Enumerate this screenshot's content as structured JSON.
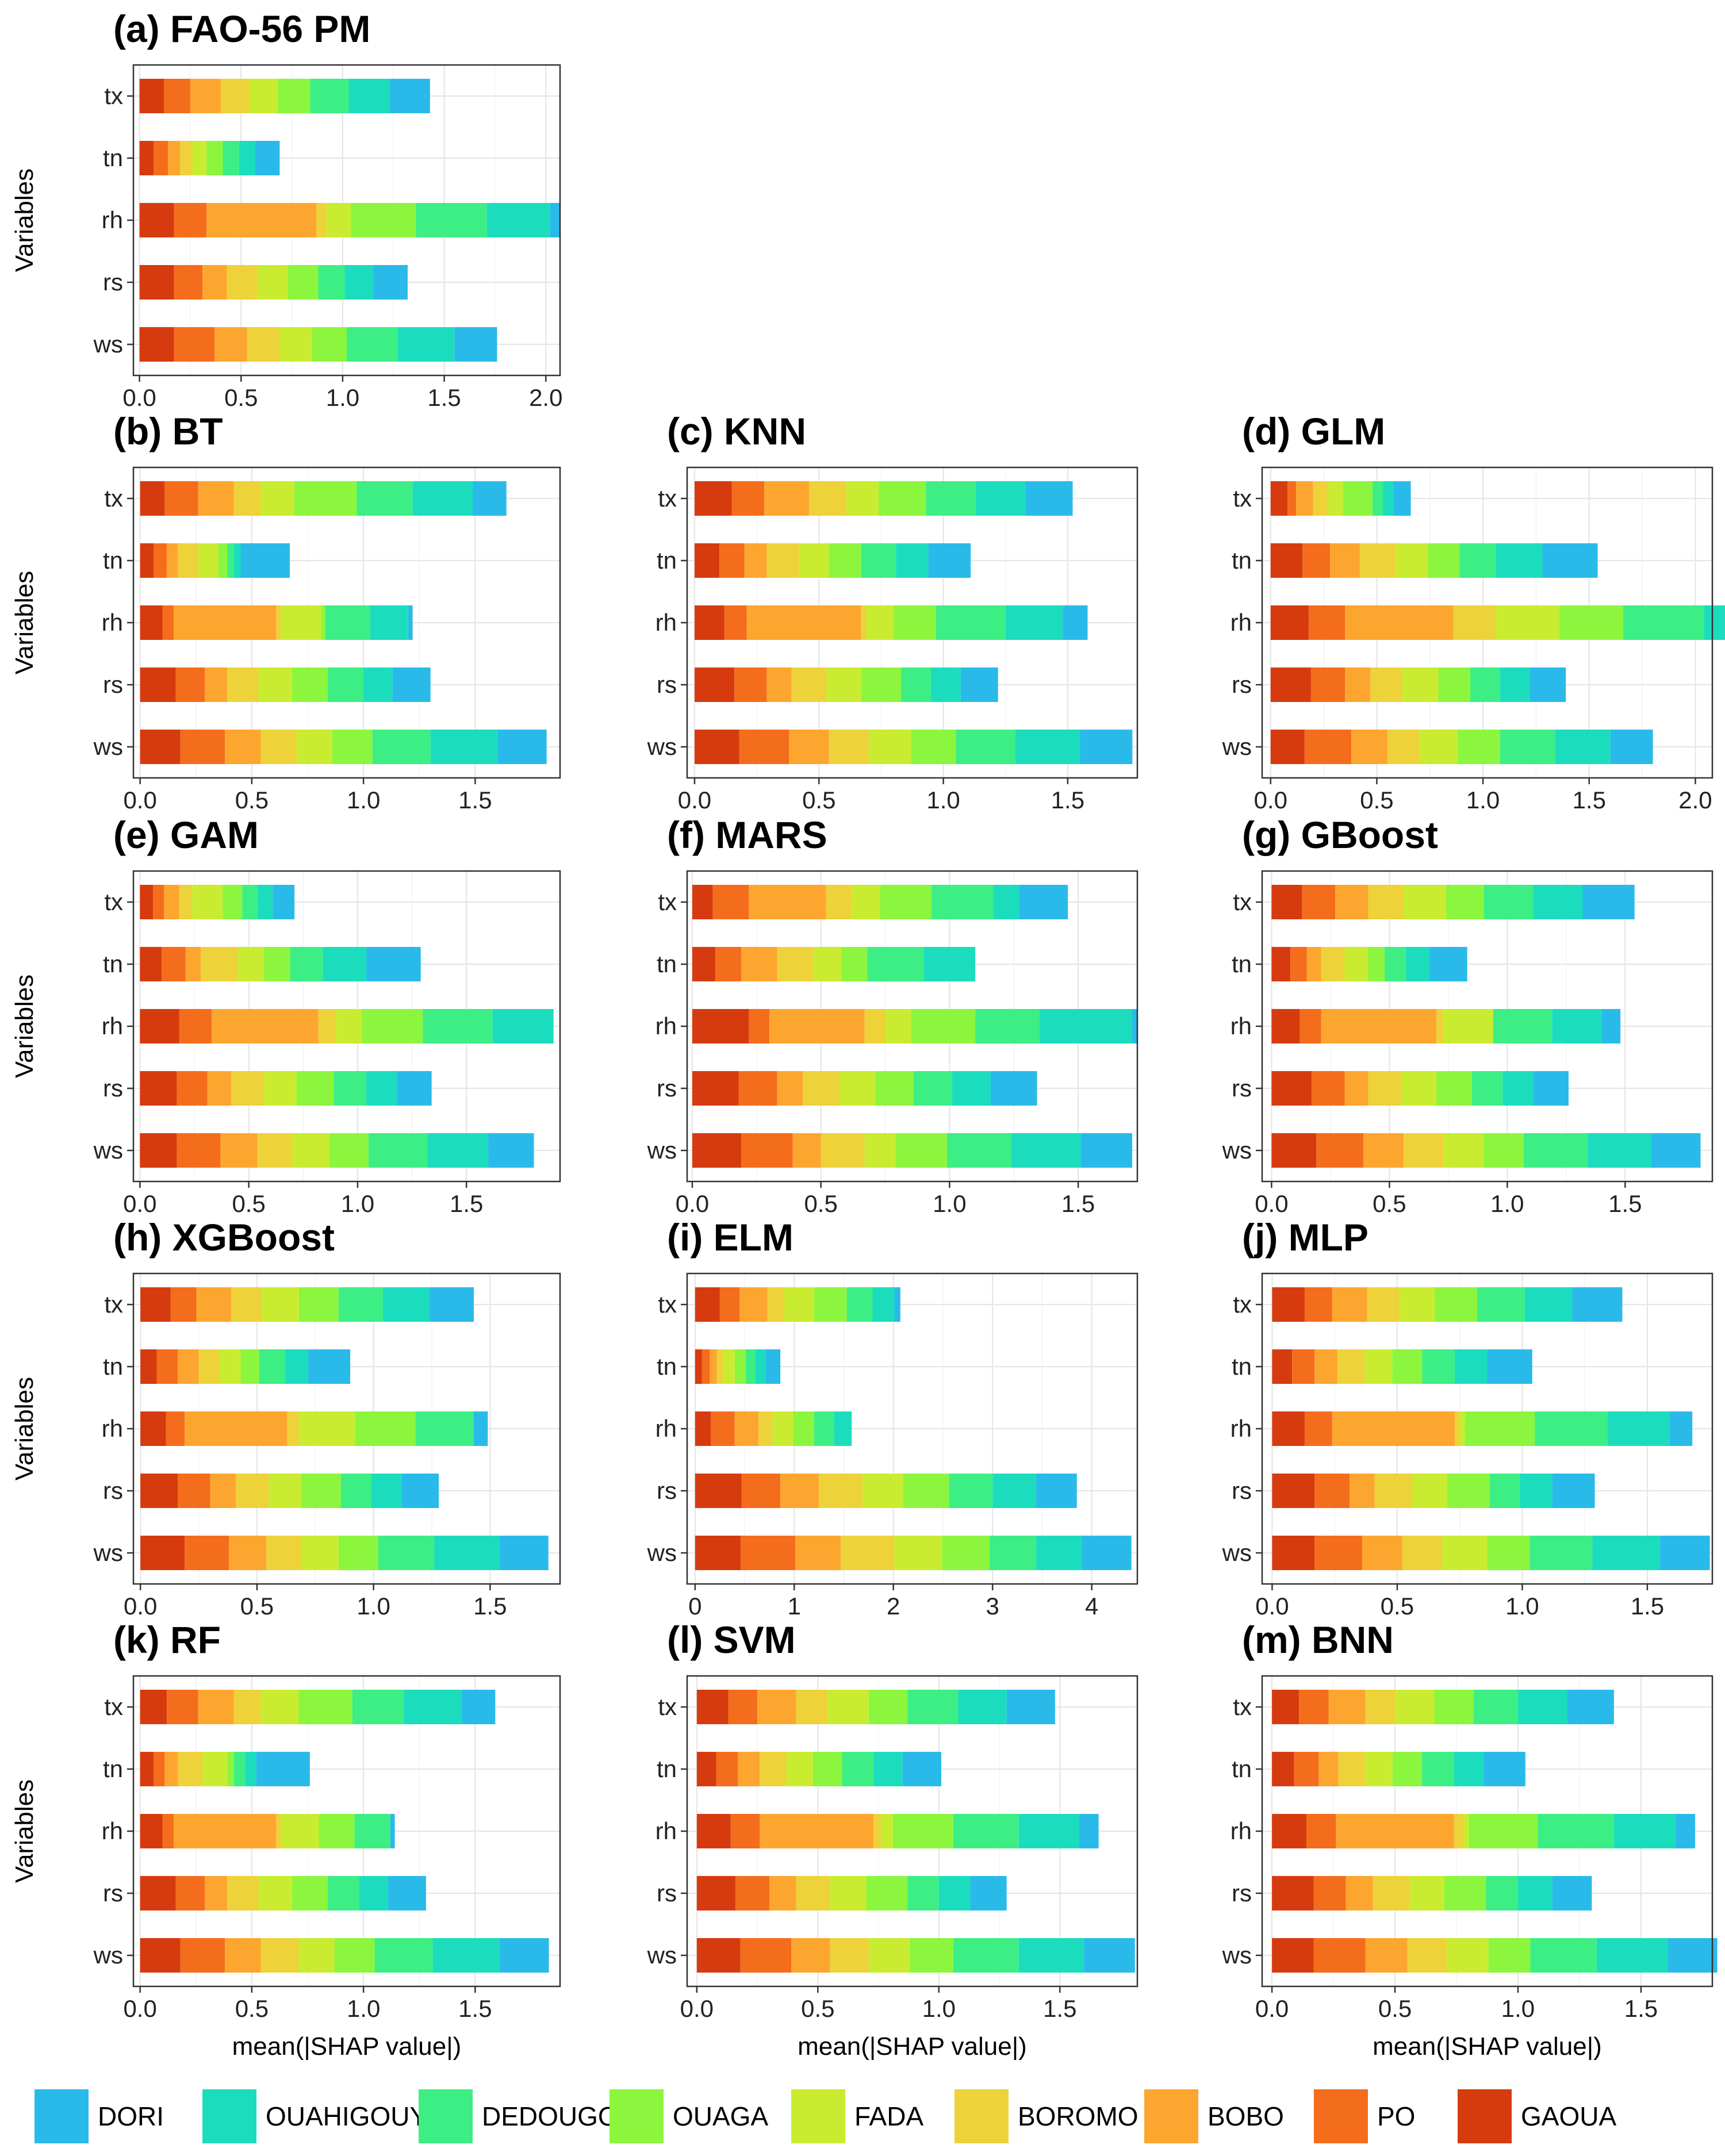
{
  "legend": {
    "items": [
      {
        "name": "DORI",
        "color": "#2ABAEA"
      },
      {
        "name": "OUAHIGOUYA",
        "color": "#1BDDBE"
      },
      {
        "name": "DEDOUGOU",
        "color": "#3DEE84"
      },
      {
        "name": "OUAGA",
        "color": "#8CF53E"
      },
      {
        "name": "FADA",
        "color": "#C9EC30"
      },
      {
        "name": "BOROMO",
        "color": "#EDD23A"
      },
      {
        "name": "BOBO",
        "color": "#FCA630"
      },
      {
        "name": "PO",
        "color": "#F46D1C"
      },
      {
        "name": "GAOUA",
        "color": "#D63B0F"
      }
    ]
  },
  "chart_data": [
    {
      "type": "bar",
      "title": "(a) FAO-56 PM",
      "xlabel": "",
      "ylabel": "Variables",
      "categories": [
        "tx",
        "tn",
        "rh",
        "rs",
        "ws"
      ],
      "xlim": [
        -0.03,
        2.07
      ],
      "xticks": [
        0.0,
        0.5,
        1.0,
        1.5,
        2.0
      ],
      "stack_order": [
        "GAOUA",
        "PO",
        "BOBO",
        "BOROMO",
        "FADA",
        "OUAGA",
        "DEDOUGOU",
        "OUAHIGOUYA",
        "DORI"
      ],
      "series": {
        "tx": [
          0.12,
          0.13,
          0.15,
          0.14,
          0.14,
          0.16,
          0.19,
          0.2,
          0.2
        ],
        "tn": [
          0.07,
          0.07,
          0.06,
          0.06,
          0.07,
          0.08,
          0.08,
          0.08,
          0.12
        ],
        "rh": [
          0.17,
          0.16,
          0.54,
          0.05,
          0.12,
          0.32,
          0.35,
          0.31,
          0.05
        ],
        "rs": [
          0.17,
          0.14,
          0.12,
          0.15,
          0.15,
          0.15,
          0.13,
          0.14,
          0.17
        ],
        "ws": [
          0.17,
          0.2,
          0.16,
          0.16,
          0.16,
          0.17,
          0.25,
          0.28,
          0.21
        ]
      }
    },
    {
      "type": "bar",
      "title": "(b) BT",
      "xlabel": "",
      "ylabel": "Variables",
      "categories": [
        "tx",
        "tn",
        "rh",
        "rs",
        "ws"
      ],
      "xlim": [
        -0.03,
        1.88
      ],
      "xticks": [
        0.0,
        0.5,
        1.0,
        1.5
      ],
      "stack_order": [
        "GAOUA",
        "PO",
        "BOBO",
        "BOROMO",
        "FADA",
        "OUAGA",
        "DEDOUGOU",
        "OUAHIGOUYA",
        "DORI"
      ],
      "series": {
        "tx": [
          0.11,
          0.15,
          0.16,
          0.12,
          0.15,
          0.28,
          0.25,
          0.27,
          0.15
        ],
        "tn": [
          0.06,
          0.06,
          0.05,
          0.09,
          0.09,
          0.04,
          0.03,
          0.03,
          0.22
        ],
        "rh": [
          0.1,
          0.05,
          0.46,
          0.02,
          0.18,
          0.02,
          0.2,
          0.17,
          0.02
        ],
        "rs": [
          0.16,
          0.13,
          0.1,
          0.14,
          0.15,
          0.16,
          0.16,
          0.13,
          0.17
        ],
        "ws": [
          0.18,
          0.2,
          0.16,
          0.16,
          0.16,
          0.18,
          0.26,
          0.3,
          0.22
        ]
      }
    },
    {
      "type": "bar",
      "title": "(c) KNN",
      "xlabel": "",
      "ylabel": "",
      "categories": [
        "tx",
        "tn",
        "rh",
        "rs",
        "ws"
      ],
      "xlim": [
        -0.03,
        1.78
      ],
      "xticks": [
        0.0,
        0.5,
        1.0,
        1.5
      ],
      "stack_order": [
        "GAOUA",
        "PO",
        "BOBO",
        "BOROMO",
        "FADA",
        "OUAGA",
        "DEDOUGOU",
        "OUAHIGOUYA",
        "DORI"
      ],
      "series": {
        "tx": [
          0.15,
          0.13,
          0.18,
          0.15,
          0.13,
          0.19,
          0.2,
          0.2,
          0.19
        ],
        "tn": [
          0.1,
          0.1,
          0.09,
          0.13,
          0.12,
          0.13,
          0.14,
          0.13,
          0.17
        ],
        "rh": [
          0.12,
          0.09,
          0.46,
          0.02,
          0.11,
          0.17,
          0.28,
          0.23,
          0.1
        ],
        "rs": [
          0.16,
          0.13,
          0.1,
          0.14,
          0.14,
          0.16,
          0.12,
          0.12,
          0.15
        ],
        "ws": [
          0.18,
          0.2,
          0.16,
          0.16,
          0.17,
          0.18,
          0.24,
          0.26,
          0.21
        ]
      }
    },
    {
      "type": "bar",
      "title": "(d) GLM",
      "xlabel": "",
      "ylabel": "",
      "categories": [
        "tx",
        "tn",
        "rh",
        "rs",
        "ws"
      ],
      "xlim": [
        -0.04,
        2.08
      ],
      "xticks": [
        0.0,
        0.5,
        1.0,
        1.5,
        2.0
      ],
      "stack_order": [
        "GAOUA",
        "PO",
        "BOBO",
        "BOROMO",
        "FADA",
        "OUAGA",
        "DEDOUGOU",
        "OUAHIGOUYA",
        "DORI"
      ],
      "series": {
        "tx": [
          0.08,
          0.04,
          0.08,
          0.07,
          0.07,
          0.14,
          0.05,
          0.05,
          0.08
        ],
        "tn": [
          0.15,
          0.13,
          0.14,
          0.17,
          0.15,
          0.15,
          0.17,
          0.22,
          0.26
        ],
        "rh": [
          0.18,
          0.17,
          0.51,
          0.2,
          0.3,
          0.3,
          0.38,
          0.28,
          0.0
        ],
        "rs": [
          0.19,
          0.16,
          0.12,
          0.15,
          0.17,
          0.15,
          0.14,
          0.14,
          0.17
        ],
        "ws": [
          0.16,
          0.22,
          0.17,
          0.15,
          0.18,
          0.2,
          0.26,
          0.26,
          0.2
        ]
      }
    },
    {
      "type": "bar",
      "title": "(e) GAM",
      "xlabel": "",
      "ylabel": "Variables",
      "categories": [
        "tx",
        "tn",
        "rh",
        "rs",
        "ws"
      ],
      "xlim": [
        -0.03,
        1.93
      ],
      "xticks": [
        0.0,
        0.5,
        1.0,
        1.5
      ],
      "stack_order": [
        "GAOUA",
        "PO",
        "BOBO",
        "BOROMO",
        "FADA",
        "OUAGA",
        "DEDOUGOU",
        "OUAHIGOUYA",
        "DORI"
      ],
      "series": {
        "tx": [
          0.06,
          0.05,
          0.07,
          0.06,
          0.14,
          0.09,
          0.07,
          0.07,
          0.1
        ],
        "tn": [
          0.1,
          0.11,
          0.07,
          0.17,
          0.12,
          0.12,
          0.15,
          0.2,
          0.25
        ],
        "rh": [
          0.18,
          0.15,
          0.49,
          0.08,
          0.12,
          0.28,
          0.32,
          0.28,
          0.0
        ],
        "rs": [
          0.17,
          0.14,
          0.11,
          0.15,
          0.15,
          0.17,
          0.15,
          0.14,
          0.16
        ],
        "ws": [
          0.17,
          0.2,
          0.17,
          0.16,
          0.17,
          0.18,
          0.27,
          0.28,
          0.21
        ]
      }
    },
    {
      "type": "bar",
      "title": "(f) MARS",
      "xlabel": "",
      "ylabel": "",
      "categories": [
        "tx",
        "tn",
        "rh",
        "rs",
        "ws"
      ],
      "xlim": [
        -0.02,
        1.73
      ],
      "xticks": [
        0.0,
        0.5,
        1.0,
        1.5
      ],
      "stack_order": [
        "GAOUA",
        "PO",
        "BOBO",
        "BOROMO",
        "FADA",
        "OUAGA",
        "DEDOUGOU",
        "OUAHIGOUYA",
        "DORI"
      ],
      "series": {
        "tx": [
          0.08,
          0.14,
          0.3,
          0.1,
          0.11,
          0.2,
          0.24,
          0.1,
          0.19
        ],
        "tn": [
          0.09,
          0.1,
          0.14,
          0.14,
          0.11,
          0.1,
          0.22,
          0.2,
          0.0
        ],
        "rh": [
          0.22,
          0.08,
          0.37,
          0.08,
          0.1,
          0.25,
          0.25,
          0.36,
          0.02
        ],
        "rs": [
          0.18,
          0.15,
          0.1,
          0.14,
          0.14,
          0.15,
          0.15,
          0.15,
          0.18
        ],
        "ws": [
          0.19,
          0.2,
          0.11,
          0.17,
          0.12,
          0.2,
          0.25,
          0.27,
          0.2
        ]
      }
    },
    {
      "type": "bar",
      "title": "(g) GBoost",
      "xlabel": "",
      "ylabel": "",
      "categories": [
        "tx",
        "tn",
        "rh",
        "rs",
        "ws"
      ],
      "xlim": [
        -0.04,
        1.87
      ],
      "xticks": [
        0.0,
        0.5,
        1.0,
        1.5
      ],
      "stack_order": [
        "GAOUA",
        "PO",
        "BOBO",
        "BOROMO",
        "FADA",
        "OUAGA",
        "DEDOUGOU",
        "OUAHIGOUYA",
        "DORI"
      ],
      "series": {
        "tx": [
          0.13,
          0.14,
          0.14,
          0.15,
          0.18,
          0.16,
          0.21,
          0.21,
          0.22
        ],
        "tn": [
          0.08,
          0.07,
          0.06,
          0.1,
          0.1,
          0.07,
          0.09,
          0.1,
          0.16
        ],
        "rh": [
          0.12,
          0.09,
          0.49,
          0.03,
          0.21,
          0.0,
          0.25,
          0.21,
          0.08
        ],
        "rs": [
          0.17,
          0.14,
          0.1,
          0.14,
          0.15,
          0.15,
          0.13,
          0.13,
          0.15
        ],
        "ws": [
          0.19,
          0.2,
          0.17,
          0.17,
          0.17,
          0.17,
          0.27,
          0.27,
          0.21
        ]
      }
    },
    {
      "type": "bar",
      "title": "(h) XGBoost",
      "xlabel": "",
      "ylabel": "Variables",
      "categories": [
        "tx",
        "tn",
        "rh",
        "rs",
        "ws"
      ],
      "xlim": [
        -0.03,
        1.8
      ],
      "xticks": [
        0.0,
        0.5,
        1.0,
        1.5
      ],
      "stack_order": [
        "GAOUA",
        "PO",
        "BOBO",
        "BOROMO",
        "FADA",
        "OUAGA",
        "DEDOUGOU",
        "OUAHIGOUYA",
        "DORI"
      ],
      "series": {
        "tx": [
          0.13,
          0.11,
          0.15,
          0.13,
          0.16,
          0.17,
          0.19,
          0.2,
          0.19
        ],
        "tn": [
          0.07,
          0.09,
          0.09,
          0.09,
          0.09,
          0.08,
          0.11,
          0.1,
          0.18
        ],
        "rh": [
          0.11,
          0.08,
          0.44,
          0.05,
          0.24,
          0.26,
          0.25,
          0.0,
          0.06
        ],
        "rs": [
          0.16,
          0.14,
          0.11,
          0.14,
          0.14,
          0.17,
          0.13,
          0.13,
          0.16
        ],
        "ws": [
          0.19,
          0.19,
          0.16,
          0.15,
          0.16,
          0.17,
          0.24,
          0.28,
          0.21
        ]
      }
    },
    {
      "type": "bar",
      "title": "(i) ELM",
      "xlabel": "",
      "ylabel": "",
      "categories": [
        "tx",
        "tn",
        "rh",
        "rs",
        "ws"
      ],
      "xlim": [
        -0.08,
        4.46
      ],
      "xticks": [
        0,
        1,
        2,
        3,
        4
      ],
      "stack_order": [
        "GAOUA",
        "PO",
        "BOBO",
        "BOROMO",
        "FADA",
        "OUAGA",
        "DEDOUGOU",
        "OUAHIGOUYA",
        "DORI"
      ],
      "series": {
        "tx": [
          0.25,
          0.2,
          0.28,
          0.17,
          0.3,
          0.33,
          0.26,
          0.22,
          0.06
        ],
        "tn": [
          0.07,
          0.08,
          0.07,
          0.06,
          0.12,
          0.11,
          0.1,
          0.1,
          0.15
        ],
        "rh": [
          0.16,
          0.24,
          0.24,
          0.14,
          0.21,
          0.21,
          0.2,
          0.18,
          0.0
        ],
        "rs": [
          0.47,
          0.39,
          0.39,
          0.44,
          0.41,
          0.46,
          0.44,
          0.44,
          0.41
        ],
        "ws": [
          0.46,
          0.55,
          0.46,
          0.54,
          0.48,
          0.48,
          0.47,
          0.46,
          0.5
        ]
      }
    },
    {
      "type": "bar",
      "title": "(j) MLP",
      "xlabel": "",
      "ylabel": "",
      "categories": [
        "tx",
        "tn",
        "rh",
        "rs",
        "ws"
      ],
      "xlim": [
        -0.04,
        1.76
      ],
      "xticks": [
        0.0,
        0.5,
        1.0,
        1.5
      ],
      "stack_order": [
        "GAOUA",
        "PO",
        "BOBO",
        "BOROMO",
        "FADA",
        "OUAGA",
        "DEDOUGOU",
        "OUAHIGOUYA",
        "DORI"
      ],
      "series": {
        "tx": [
          0.13,
          0.11,
          0.14,
          0.13,
          0.14,
          0.17,
          0.19,
          0.19,
          0.2
        ],
        "tn": [
          0.08,
          0.09,
          0.09,
          0.11,
          0.11,
          0.12,
          0.13,
          0.13,
          0.18
        ],
        "rh": [
          0.13,
          0.11,
          0.49,
          0.02,
          0.02,
          0.28,
          0.29,
          0.25,
          0.09
        ],
        "rs": [
          0.17,
          0.14,
          0.1,
          0.15,
          0.14,
          0.17,
          0.12,
          0.13,
          0.17
        ],
        "ws": [
          0.17,
          0.19,
          0.16,
          0.16,
          0.18,
          0.17,
          0.25,
          0.27,
          0.2
        ]
      }
    },
    {
      "type": "bar",
      "title": "(k) RF",
      "xlabel": "mean(|SHAP value|)",
      "ylabel": "Variables",
      "categories": [
        "tx",
        "tn",
        "rh",
        "rs",
        "ws"
      ],
      "xlim": [
        -0.03,
        1.88
      ],
      "xticks": [
        0.0,
        0.5,
        1.0,
        1.5
      ],
      "stack_order": [
        "GAOUA",
        "PO",
        "BOBO",
        "BOROMO",
        "FADA",
        "OUAGA",
        "DEDOUGOU",
        "OUAHIGOUYA",
        "DORI"
      ],
      "series": {
        "tx": [
          0.12,
          0.14,
          0.16,
          0.12,
          0.17,
          0.24,
          0.23,
          0.26,
          0.15
        ],
        "tn": [
          0.06,
          0.05,
          0.06,
          0.11,
          0.11,
          0.03,
          0.05,
          0.05,
          0.24
        ],
        "rh": [
          0.1,
          0.05,
          0.46,
          0.02,
          0.17,
          0.16,
          0.16,
          0.0,
          0.02
        ],
        "rs": [
          0.16,
          0.13,
          0.1,
          0.14,
          0.15,
          0.16,
          0.14,
          0.13,
          0.17
        ],
        "ws": [
          0.18,
          0.2,
          0.16,
          0.17,
          0.16,
          0.18,
          0.26,
          0.3,
          0.22
        ]
      }
    },
    {
      "type": "bar",
      "title": "(l) SVM",
      "xlabel": "mean(|SHAP value|)",
      "ylabel": "",
      "categories": [
        "tx",
        "tn",
        "rh",
        "rs",
        "ws"
      ],
      "xlim": [
        -0.04,
        1.82
      ],
      "xticks": [
        0.0,
        0.5,
        1.0,
        1.5
      ],
      "stack_order": [
        "GAOUA",
        "PO",
        "BOBO",
        "BOROMO",
        "FADA",
        "OUAGA",
        "DEDOUGOU",
        "OUAHIGOUYA",
        "DORI"
      ],
      "series": {
        "tx": [
          0.13,
          0.12,
          0.16,
          0.13,
          0.17,
          0.16,
          0.21,
          0.2,
          0.2
        ],
        "tn": [
          0.08,
          0.09,
          0.09,
          0.11,
          0.11,
          0.12,
          0.13,
          0.12,
          0.16
        ],
        "rh": [
          0.14,
          0.12,
          0.47,
          0.03,
          0.05,
          0.25,
          0.27,
          0.25,
          0.08
        ],
        "rs": [
          0.16,
          0.14,
          0.11,
          0.14,
          0.15,
          0.17,
          0.13,
          0.13,
          0.15
        ],
        "ws": [
          0.18,
          0.21,
          0.16,
          0.16,
          0.17,
          0.18,
          0.27,
          0.27,
          0.21
        ]
      }
    },
    {
      "type": "bar",
      "title": "(m) BNN",
      "xlabel": "mean(|SHAP value|)",
      "ylabel": "",
      "categories": [
        "tx",
        "tn",
        "rh",
        "rs",
        "ws"
      ],
      "xlim": [
        -0.04,
        1.79
      ],
      "xticks": [
        0.0,
        0.5,
        1.0,
        1.5
      ],
      "stack_order": [
        "GAOUA",
        "PO",
        "BOBO",
        "BOROMO",
        "FADA",
        "OUAGA",
        "DEDOUGOU",
        "OUAHIGOUYA",
        "DORI"
      ],
      "series": {
        "tx": [
          0.11,
          0.12,
          0.15,
          0.12,
          0.16,
          0.16,
          0.18,
          0.2,
          0.19
        ],
        "tn": [
          0.09,
          0.1,
          0.08,
          0.11,
          0.11,
          0.12,
          0.13,
          0.12,
          0.17
        ],
        "rh": [
          0.14,
          0.12,
          0.48,
          0.04,
          0.02,
          0.28,
          0.31,
          0.25,
          0.08
        ],
        "rs": [
          0.17,
          0.13,
          0.11,
          0.15,
          0.14,
          0.17,
          0.13,
          0.14,
          0.16
        ],
        "ws": [
          0.17,
          0.21,
          0.17,
          0.16,
          0.17,
          0.17,
          0.27,
          0.29,
          0.2
        ]
      }
    }
  ]
}
